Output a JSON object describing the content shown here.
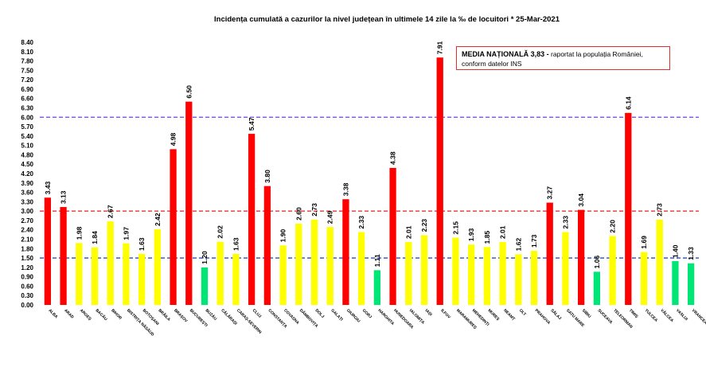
{
  "chart_data": {
    "type": "bar",
    "title": "Incidența cumulată a cazurilor la nivel județean în ultimele 14 zile   la ‰ de locuitori  *  25-Mar-2021",
    "ylim": [
      0,
      8.4
    ],
    "yticks": [
      "0.00",
      "0.30",
      "0.60",
      "0.90",
      "1.20",
      "1.50",
      "1.80",
      "2.10",
      "2.40",
      "2.70",
      "3.00",
      "3.30",
      "3.60",
      "3.90",
      "4.20",
      "4.50",
      "4.80",
      "5.10",
      "5.40",
      "5.70",
      "6.00",
      "6.30",
      "6.60",
      "6.90",
      "7.20",
      "7.50",
      "7.80",
      "8.10",
      "8.40"
    ],
    "grid": false,
    "categories": [
      "ALBA",
      "ARAD",
      "ARGEȘ",
      "BACĂU",
      "BIHOR",
      "BISTRIȚA NĂSĂUD",
      "BOTOȘANI",
      "BRĂILA",
      "BRAȘOV",
      "BUCUREȘTI",
      "BUZĂU",
      "CĂLĂRAȘI",
      "CARAȘ-SEVERIN",
      "CLUJ",
      "CONSTANȚA",
      "COVASNA",
      "DÂMBOVIȚA",
      "DOLJ",
      "GALAȚI",
      "GIURGIU",
      "GORJ",
      "HARGHITA",
      "HUNEDOARA",
      "IALOMIȚA",
      "IAȘI",
      "ILFOV",
      "MARAMUREȘ",
      "MEHEDINȚI",
      "MUREȘ",
      "NEAMȚ",
      "OLT",
      "PRAHOVA",
      "SĂLAJ",
      "SATU MARE",
      "SIBIU",
      "SUCEAVA",
      "TELEORMAN",
      "TIMIȘ",
      "TULCEA",
      "VÂLCEA",
      "VASLUI",
      "VRANCEA"
    ],
    "values": [
      3.43,
      3.13,
      1.98,
      1.84,
      2.67,
      1.97,
      1.63,
      2.42,
      4.98,
      6.5,
      1.2,
      2.02,
      1.63,
      5.47,
      3.8,
      1.9,
      2.6,
      2.73,
      2.49,
      3.38,
      2.33,
      1.11,
      4.38,
      2.01,
      2.23,
      7.91,
      2.15,
      1.93,
      1.85,
      2.01,
      1.62,
      1.73,
      3.27,
      2.33,
      3.04,
      1.06,
      2.2,
      6.14,
      1.69,
      2.73,
      1.4,
      1.33
    ],
    "labels": [
      "3.43",
      "3.13",
      "1.98",
      "1.84",
      "2.67",
      "1.97",
      "1.63",
      "2.42",
      "4.98",
      "6.50",
      "1.20",
      "2.02",
      "1.63",
      "5.47",
      "3.80",
      "1.90",
      "2.60",
      "2.73",
      "2.49",
      "3.38",
      "2.33",
      "1.11",
      "4.38",
      "2.01",
      "2.23",
      "7.91",
      "2.15",
      "1.93",
      "1.85",
      "2.01",
      "1.62",
      "1.73",
      "3.27",
      "2.33",
      "3.04",
      "1.06",
      "2.20",
      "6.14",
      "1.69",
      "2.73",
      "1.40",
      "1.33"
    ],
    "thresholds": [
      1.5,
      3.0,
      6.0
    ],
    "colors": {
      "red": "#ff0000",
      "yellow": "#ffff00",
      "green": "#00e676",
      "line_low": "#1f4fd6",
      "line_mid": "#e02020",
      "line_high": "#7a3fd6"
    },
    "annotation": {
      "bold": "MEDIA NAȚIONALĂ 3,83 -",
      "line1": " raportat la populația României,",
      "line2": "conform datelor INS"
    }
  }
}
